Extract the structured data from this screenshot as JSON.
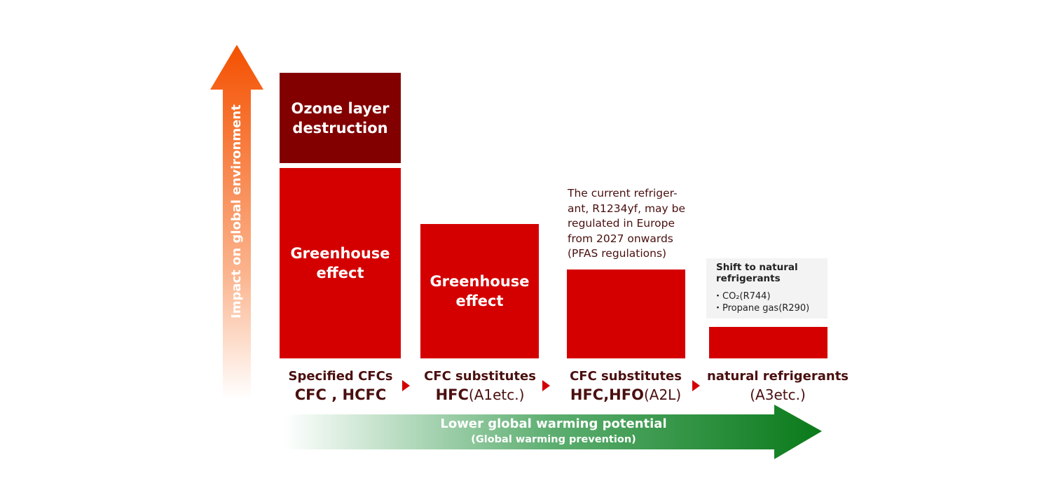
{
  "y_axis": {
    "label": "Impact on global environment"
  },
  "x_axis": {
    "label": "Lower global warming potential",
    "sublabel": "(Global warming prevention)"
  },
  "columns": [
    {
      "top_bar": "Ozone layer destruction",
      "bar": "Greenhouse effect",
      "category": "Specified CFCs",
      "examples_bold": "CFC , HCFC",
      "examples_normal": ""
    },
    {
      "bar": "Greenhouse effect",
      "category": "CFC substitutes",
      "examples_bold": "HFC",
      "examples_normal": "(A1etc.)"
    },
    {
      "bar": "",
      "category": "CFC substitutes",
      "examples_bold": "HFC,HFO",
      "examples_normal": "(A2L)",
      "note": "The current refriger-\nant, R1234yf, may be\nregulated in Europe\nfrom 2027 onwards\n(PFAS regulations)"
    },
    {
      "bar": "",
      "category": "natural refrigerants",
      "examples_bold": "",
      "examples_normal": "(A3etc.)",
      "box_title": "Shift to natural refrigerants",
      "box_items": [
        "・CO₂(R744)",
        "・Propane gas(R290)"
      ]
    }
  ],
  "colors": {
    "bar_red": "#d40000",
    "bar_dark": "#820000",
    "text_dark": "#4a0f0f",
    "axis_orange": "#f45000",
    "axis_green": "#0a7a1a"
  }
}
